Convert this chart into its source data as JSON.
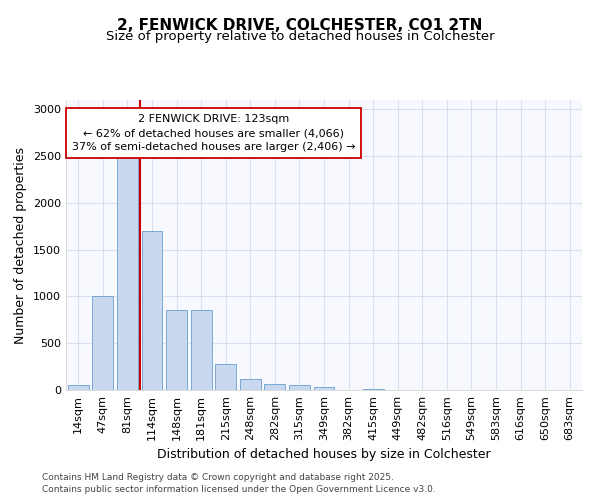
{
  "title_line1": "2, FENWICK DRIVE, COLCHESTER, CO1 2TN",
  "title_line2": "Size of property relative to detached houses in Colchester",
  "xlabel": "Distribution of detached houses by size in Colchester",
  "ylabel": "Number of detached properties",
  "categories": [
    "14sqm",
    "47sqm",
    "81sqm",
    "114sqm",
    "148sqm",
    "181sqm",
    "215sqm",
    "248sqm",
    "282sqm",
    "315sqm",
    "349sqm",
    "382sqm",
    "415sqm",
    "449sqm",
    "482sqm",
    "516sqm",
    "549sqm",
    "583sqm",
    "616sqm",
    "650sqm",
    "683sqm"
  ],
  "values": [
    50,
    1000,
    2500,
    1700,
    850,
    850,
    280,
    120,
    60,
    50,
    30,
    0,
    15,
    0,
    0,
    0,
    0,
    0,
    0,
    0,
    0
  ],
  "bar_color": "#c8d8ef",
  "bar_edge_color": "#7aa8d4",
  "vline_color": "#cc0000",
  "annotation_text": "2 FENWICK DRIVE: 123sqm\n← 62% of detached houses are smaller (4,066)\n37% of semi-detached houses are larger (2,406) →",
  "annotation_box_facecolor": "#ffffff",
  "annotation_box_edgecolor": "#cc0000",
  "ylim": [
    0,
    3100
  ],
  "yticks": [
    0,
    500,
    1000,
    1500,
    2000,
    2500,
    3000
  ],
  "footer_line1": "Contains HM Land Registry data © Crown copyright and database right 2025.",
  "footer_line2": "Contains public sector information licensed under the Open Government Licence v3.0.",
  "bg_color": "#ffffff",
  "plot_bg_color": "#f7f9ff",
  "grid_color": "#d8e0f0",
  "title_fontsize": 11,
  "subtitle_fontsize": 9.5,
  "tick_fontsize": 8,
  "label_fontsize": 9,
  "footer_fontsize": 6.5,
  "annot_fontsize": 8
}
